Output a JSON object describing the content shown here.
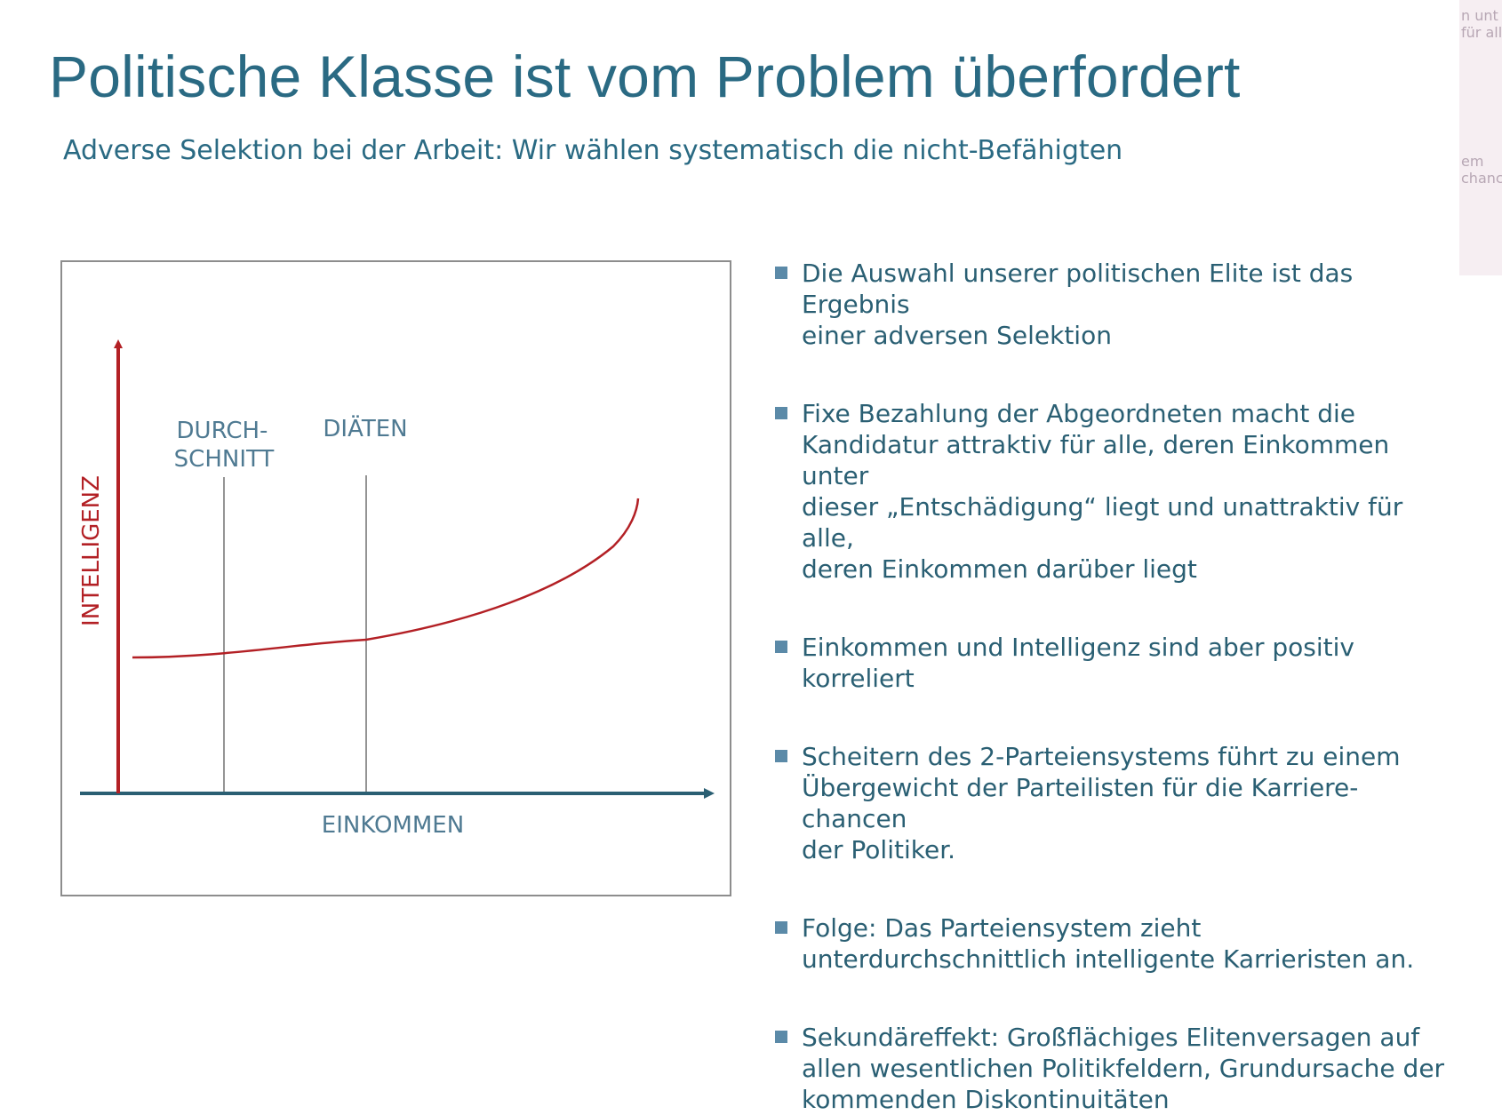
{
  "slide": {
    "title": "Politische Klasse ist vom Problem überfordert",
    "subtitle": "Adverse Selektion bei der Arbeit: Wir wählen systematisch die nicht-Befähigten"
  },
  "diagram": {
    "y_axis_label": "INTELLIGENZ",
    "x_axis_label": "EINKOMMEN",
    "line1_label_a": "DURCH-",
    "line1_label_b": "SCHNITT",
    "line2_label": "DIÄTEN",
    "colors": {
      "curve": "#b32025",
      "x_axis": "#2a5f73",
      "marker_lines": "#7a7a7a"
    }
  },
  "bullets": [
    {
      "lines": [
        "Die Auswahl unserer politischen Elite ist das Ergebnis",
        "einer adversen Selektion"
      ]
    },
    {
      "lines": [
        "Fixe Bezahlung der Abgeordneten macht die",
        "Kandidatur attraktiv für alle, deren Einkommen unter",
        "dieser „Entschädigung“ liegt und unattraktiv für alle,",
        "deren Einkommen darüber liegt"
      ]
    },
    {
      "lines": [
        "Einkommen und Intelligenz sind aber positiv",
        "korreliert"
      ]
    },
    {
      "lines": [
        "Scheitern des 2-Parteiensystems führt zu einem",
        "Übergewicht der Parteilisten für die Karriere-chancen",
        "der Politiker."
      ]
    },
    {
      "lines": [
        "Folge: Das Parteiensystem zieht",
        "unterdurchschnittlich intelligente Karrieristen an."
      ]
    },
    {
      "lines": [
        "Sekundäreffekt: Großflächiges Elitenversagen auf",
        "allen wesentlichen Politikfeldern, Grundursache der",
        "kommenden Diskontinuitäten"
      ]
    }
  ],
  "side_panel": {
    "lines": [
      "n unt",
      "für all",
      "em",
      "chanc"
    ]
  }
}
